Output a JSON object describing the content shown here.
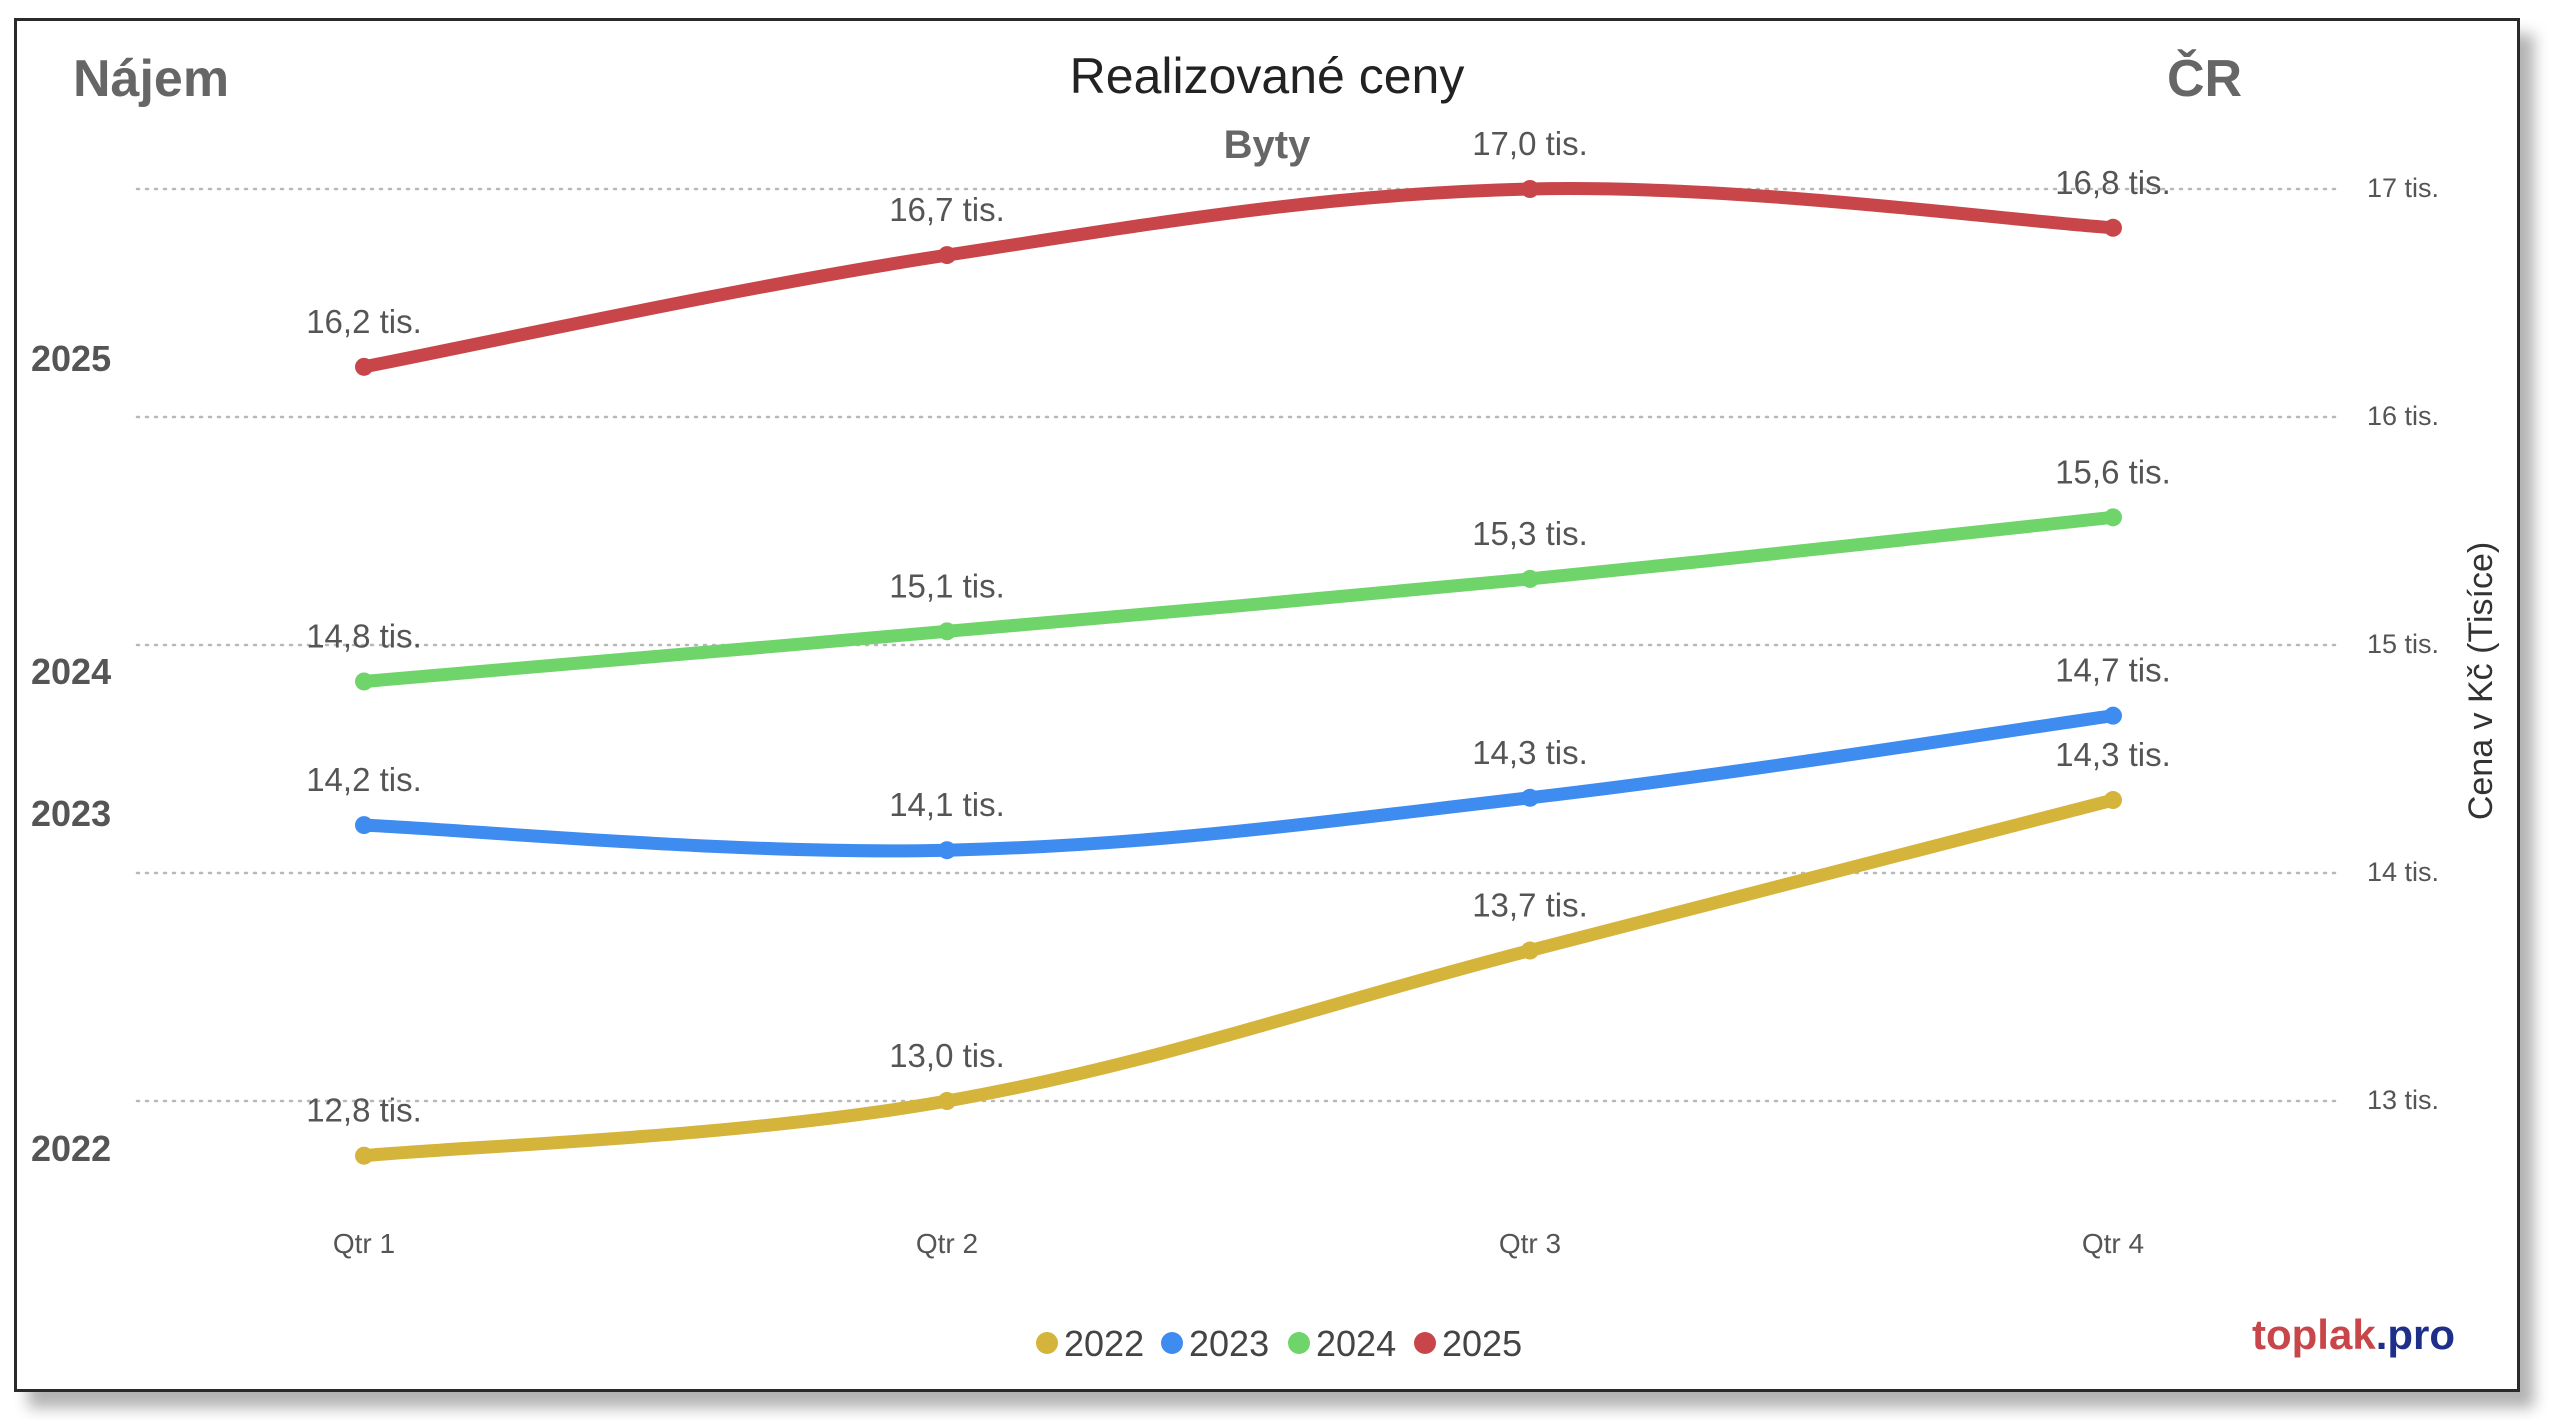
{
  "header": {
    "left_label": "Nájem",
    "title": "Realizované ceny",
    "subtitle": "Byty",
    "right_label": "ČR"
  },
  "branding": {
    "part1": "toplak",
    "part2": ".pro"
  },
  "chart_data": {
    "type": "line",
    "categories": [
      "Qtr 1",
      "Qtr 2",
      "Qtr 3",
      "Qtr 4"
    ],
    "ylabel": "Cena v Kč (Tisíce)",
    "ylim": [
      12.6,
      17.1
    ],
    "yticks": [
      {
        "value": 13,
        "label": "13 tis."
      },
      {
        "value": 14,
        "label": "14 tis."
      },
      {
        "value": 15,
        "label": "15 tis."
      },
      {
        "value": 16,
        "label": "16 tis."
      },
      {
        "value": 17,
        "label": "17 tis."
      }
    ],
    "grid": true,
    "legend_position": "bottom",
    "series": [
      {
        "name": "2022",
        "color": "#d4b43a",
        "values": [
          12.76,
          13.0,
          13.66,
          14.32
        ],
        "labels": [
          "12,8 tis.",
          "13,0 tis.",
          "13,7 tis.",
          "14,3 tis."
        ]
      },
      {
        "name": "2023",
        "color": "#3f8cf0",
        "values": [
          14.21,
          14.1,
          14.33,
          14.69
        ],
        "labels": [
          "14,2 tis.",
          "14,1 tis.",
          "14,3 tis.",
          "14,7 tis."
        ]
      },
      {
        "name": "2024",
        "color": "#6fd46a",
        "values": [
          14.84,
          15.06,
          15.29,
          15.56
        ],
        "labels": [
          "14,8 tis.",
          "15,1 tis.",
          "15,3 tis.",
          "15,6 tis."
        ]
      },
      {
        "name": "2025",
        "color": "#c8464a",
        "values": [
          16.22,
          16.71,
          17.0,
          16.83
        ],
        "labels": [
          "16,2 tis.",
          "16,7 tis.",
          "17,0 tis.",
          "16,8 tis."
        ]
      }
    ],
    "row_labels": [
      "2025",
      "2024",
      "2023",
      "2022"
    ]
  }
}
